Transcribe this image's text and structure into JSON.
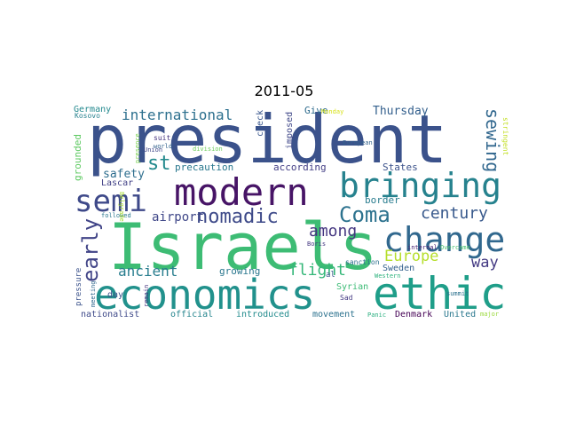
{
  "title": "2011-05",
  "words": [
    {
      "t": "president",
      "c": "#3b528b"
    },
    {
      "t": "Israels",
      "c": "#3dbc74"
    },
    {
      "t": "economics",
      "c": "#21918c"
    },
    {
      "t": "ethic",
      "c": "#1f9e89"
    },
    {
      "t": "modern",
      "c": "#471466"
    },
    {
      "t": "bringing",
      "c": "#26828e"
    },
    {
      "t": "change",
      "c": "#31688e"
    },
    {
      "t": "semi",
      "c": "#3e4989"
    },
    {
      "t": "Coma",
      "c": "#2c728e"
    },
    {
      "t": "nomadic",
      "c": "#3e4a89"
    },
    {
      "t": "early",
      "c": "#414487"
    },
    {
      "t": "century",
      "c": "#38598c"
    },
    {
      "t": "among",
      "c": "#453781"
    },
    {
      "t": "Europe",
      "c": "#b5de2b"
    },
    {
      "t": "sewing",
      "c": "#31678e"
    },
    {
      "t": "international",
      "c": "#2d708e"
    },
    {
      "t": "st",
      "c": "#238a8d"
    },
    {
      "t": "flight",
      "c": "#35b779"
    },
    {
      "t": "way",
      "c": "#443a83"
    },
    {
      "t": "ancient",
      "c": "#287d8e"
    },
    {
      "t": "airport",
      "c": "#3f4788"
    },
    {
      "t": "Thursday",
      "c": "#34608d"
    },
    {
      "t": "safety",
      "c": "#2e6e8e"
    },
    {
      "t": "grounded",
      "c": "#5ec962"
    },
    {
      "t": "precaution",
      "c": "#2a788e"
    },
    {
      "t": "according",
      "c": "#433e85"
    },
    {
      "t": "States",
      "c": "#3b528b"
    },
    {
      "t": "border",
      "c": "#287c8e"
    },
    {
      "t": "growing",
      "c": "#2a778e"
    },
    {
      "t": "imposed",
      "c": "#3f4788"
    },
    {
      "t": "check",
      "c": "#39568c"
    },
    {
      "t": "Give",
      "c": "#2f6c8e"
    },
    {
      "t": "Germany",
      "c": "#23898e"
    },
    {
      "t": "Kosovo",
      "c": "#26818e"
    },
    {
      "t": "suit",
      "c": "#46337f"
    },
    {
      "t": "world",
      "c": "#33638d"
    },
    {
      "t": "presence",
      "c": "#7ad151"
    },
    {
      "t": "division",
      "c": "#6ccd5a"
    },
    {
      "t": "Union",
      "c": "#404688"
    },
    {
      "t": "Monday",
      "c": "#d8e219"
    },
    {
      "t": "European",
      "c": "#33638d"
    },
    {
      "t": "internal",
      "c": "#482374"
    },
    {
      "t": "Overcame",
      "c": "#4ac16d"
    },
    {
      "t": "stringent",
      "c": "#c2df23"
    },
    {
      "t": "Lascar",
      "c": "#424186"
    },
    {
      "t": "day",
      "c": "#3b528b"
    },
    {
      "t": "followed",
      "c": "#2a788e"
    },
    {
      "t": "pressure",
      "c": "#3b528b"
    },
    {
      "t": "meeting",
      "c": "#31688e"
    },
    {
      "t": "remain",
      "c": "#46337f"
    },
    {
      "t": "Belgrade",
      "c": "#a8db34"
    },
    {
      "t": "Boris",
      "c": "#453882"
    },
    {
      "t": "sanction",
      "c": "#2d708e"
    },
    {
      "t": "al",
      "c": "#39568c"
    },
    {
      "t": "Sweden",
      "c": "#34618d"
    },
    {
      "t": "Syrian",
      "c": "#3bbb75"
    },
    {
      "t": "Sad",
      "c": "#443983"
    },
    {
      "t": "Western",
      "c": "#2db27d"
    },
    {
      "t": "summit",
      "c": "#2c728e"
    },
    {
      "t": "nationalist",
      "c": "#3e4989"
    },
    {
      "t": "official",
      "c": "#25858e"
    },
    {
      "t": "introduced",
      "c": "#228b8d"
    },
    {
      "t": "movement",
      "c": "#2c728e"
    },
    {
      "t": "Panic",
      "c": "#29af7f"
    },
    {
      "t": "Denmark",
      "c": "#440154"
    },
    {
      "t": "United",
      "c": "#2a788e"
    },
    {
      "t": "major",
      "c": "#9bd93c"
    }
  ]
}
